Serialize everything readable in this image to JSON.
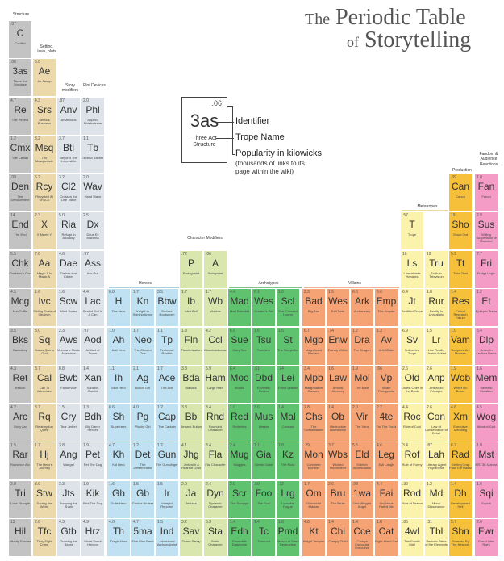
{
  "title": {
    "the": "The",
    "line1": "Periodic Table",
    "of": "of",
    "line2": "Storytelling"
  },
  "legend": {
    "popularity": ".06",
    "identifier": "3as",
    "name": "Three Act Structure",
    "label_identifier": "Identifier",
    "label_name": "Trope Name",
    "label_popularity": "Popularity in kilowicks",
    "label_popularity_note": "(thousands of links to its page within the wiki)"
  },
  "group_labels": {
    "structure": "Structure",
    "setting": "Setting, laws, plots",
    "story_modifiers": "Story modifiers",
    "plot_devices": "Plot Devices",
    "character_modifiers": "Character Modifiers",
    "heroes": "Heroes",
    "archetypes": "Archetypes",
    "villains": "Villains",
    "metatropes": "Metatropes",
    "production": "Production",
    "fandom": "Fandom & Audience Reactions"
  },
  "colors": {
    "structure": "#c3c3c3",
    "setting": "#ebd9ac",
    "modifiers": "#dde3e9",
    "charmod": "#d9e7ae",
    "heroes": "#bfe1f1",
    "archetypes": "#5fc26e",
    "villains": "#f5a374",
    "metatropes": "#fbf2ab",
    "production": "#f6c03b",
    "fandom": "#f49cc5"
  },
  "cells": [
    {
      "s": "C",
      "n": "Conflict",
      "p": ".07",
      "c": "structure"
    },
    {
      "s": "3as",
      "n": "Three Act Structure",
      "p": ".06",
      "c": "structure"
    },
    {
      "s": "Re",
      "n": "The Reveal",
      "p": "4.7",
      "c": "structure"
    },
    {
      "s": "Cmx",
      "n": "The Climax",
      "p": "1.2",
      "c": "structure"
    },
    {
      "s": "Den",
      "n": "The Dénouement",
      "p": ".09",
      "c": "structure"
    },
    {
      "s": "End",
      "n": "The End",
      "p": "14",
      "c": "structure"
    },
    {
      "s": "Chk",
      "n": "Chekhov's Gun",
      "p": "5.5",
      "c": "structure"
    },
    {
      "s": "Mcg",
      "n": "MacGuffin",
      "p": "4.5",
      "c": "structure"
    },
    {
      "s": "Bks",
      "n": "Backstory",
      "p": "3.5",
      "c": "structure"
    },
    {
      "s": "Ret",
      "n": "Retcon",
      "p": "4.3",
      "c": "structure"
    },
    {
      "s": "Arc",
      "n": "Story Arc",
      "p": "4.2",
      "c": "structure"
    },
    {
      "s": "Rar",
      "n": "Romance Arc",
      "p": "1.5",
      "c": "structure"
    },
    {
      "s": "Tri",
      "n": "Love Triangle",
      "p": "2.8",
      "c": "structure"
    },
    {
      "s": "Hil",
      "n": "Hilarity Ensues",
      "p": "13",
      "c": "structure"
    },
    {
      "s": "Ae",
      "n": "An Aesop",
      "p": "5.0",
      "c": "setting"
    },
    {
      "s": "Srs",
      "n": "Serious Business",
      "p": "4.3",
      "c": "setting"
    },
    {
      "s": "Msq",
      "n": "The Masquerade",
      "p": "3.2",
      "c": "setting"
    },
    {
      "s": "Rcy",
      "n": "Recycled IN SPACE",
      "p": "5.2",
      "c": "setting"
    },
    {
      "s": "X",
      "n": "X Meets Y",
      "p": "2.3",
      "c": "setting"
    },
    {
      "s": "Aa",
      "n": "Magic A Is Magic A",
      "p": "7.0",
      "c": "setting"
    },
    {
      "s": "Ivc",
      "n": "Sliding Scale of Idealism",
      "p": "1.6",
      "c": "setting"
    },
    {
      "s": "Sq",
      "n": "Status Quo Is God",
      "p": "3.0",
      "c": "setting"
    },
    {
      "s": "Cal",
      "n": "Call To Adventure",
      "p": "3.7",
      "c": "setting"
    },
    {
      "s": "Rq",
      "n": "Redemption Quest",
      "p": "3.7",
      "c": "setting"
    },
    {
      "s": "Hj",
      "n": "The Hero's Journey",
      "p": "1.7",
      "c": "setting"
    },
    {
      "s": "Stw",
      "n": "Saving the World",
      "p": "3.0",
      "c": "setting"
    },
    {
      "s": "Tfc",
      "n": "They Fight Crime",
      "p": "2.6",
      "c": "setting"
    },
    {
      "s": "Anv",
      "n": "Anvilicious",
      "p": ".87",
      "c": "modifiers"
    },
    {
      "s": "Bti",
      "n": "Beyond The Impossible",
      "p": "3.7",
      "c": "modifiers"
    },
    {
      "s": "Cl2",
      "n": "Crosses the Line Twice",
      "p": "3.2",
      "c": "modifiers"
    },
    {
      "s": "Ria",
      "n": "Refuge in Audacity",
      "p": "5.0",
      "c": "modifiers"
    },
    {
      "s": "Dae",
      "n": "Darker and Edgier",
      "p": "4.6",
      "c": "modifiers"
    },
    {
      "s": "Scw",
      "n": "Mind Screw",
      "p": "1.6",
      "c": "modifiers"
    },
    {
      "s": "Aws",
      "n": "Mundane Made Awesome",
      "p": "2.3",
      "c": "modifiers"
    },
    {
      "s": "Bwb",
      "n": "Fanservice",
      "p": "8.8",
      "c": "modifiers"
    },
    {
      "s": "Cry",
      "n": "Tear Jerker",
      "p": "1.5",
      "c": "modifiers"
    },
    {
      "s": "Ang",
      "n": "Wangst",
      "p": "3.8",
      "c": "modifiers"
    },
    {
      "s": "Jts",
      "n": "Jumping the Shark",
      "p": "3.3",
      "c": "modifiers"
    },
    {
      "s": "Gtb",
      "n": "Growing the Beard",
      "p": "4.3",
      "c": "modifiers"
    },
    {
      "s": "Phl",
      "n": "Applied Phlebotinum",
      "p": "2.0",
      "c": "modifiers"
    },
    {
      "s": "Tb",
      "n": "Techno Babble",
      "p": "1.1",
      "c": "modifiers"
    },
    {
      "s": "Wav",
      "n": "Hand Wave",
      "p": "2.0",
      "c": "modifiers"
    },
    {
      "s": "Dx",
      "n": "Deus Ex Machina",
      "p": "2.5",
      "c": "modifiers"
    },
    {
      "s": "Ass",
      "n": "Ass Pull",
      "p": ".97",
      "c": "modifiers"
    },
    {
      "s": "Lac",
      "n": "Sealed Evil In A Can",
      "p": "4.4",
      "c": "modifiers"
    },
    {
      "s": "Aod",
      "n": "Artifact of Doom",
      "p": ".97",
      "c": "modifiers"
    },
    {
      "s": "Xan",
      "n": "Xanatos Gambit",
      "p": "1.4",
      "c": "modifiers"
    },
    {
      "s": "Bdh",
      "n": "Big Damn Heroes",
      "p": "1.3",
      "c": "modifiers"
    },
    {
      "s": "Pet",
      "n": "Pet The Dog",
      "p": "1.9",
      "c": "modifiers"
    },
    {
      "s": "Kik",
      "n": "Kick The Dog",
      "p": "1.9",
      "c": "modifiers"
    },
    {
      "s": "Hrz",
      "n": "Moral Event Horizon",
      "p": "4.9",
      "c": "modifiers"
    },
    {
      "s": "P",
      "n": "Protagonist",
      "p": ".72",
      "c": "charmod"
    },
    {
      "s": "A",
      "n": "Antagonist",
      "p": ".06",
      "c": "charmod"
    },
    {
      "s": "Ib",
      "n": "Idiot Ball",
      "p": "1.7",
      "c": "charmod"
    },
    {
      "s": "Wb",
      "n": "Woobie",
      "p": "1.7",
      "c": "charmod"
    },
    {
      "s": "Fln",
      "n": "Flanderization",
      "p": "1.3",
      "c": "charmod"
    },
    {
      "s": "Ccl",
      "n": "Cloudcuckoolander",
      "p": "4.2",
      "c": "charmod"
    },
    {
      "s": "Bda",
      "n": "Badass",
      "p": "3.3",
      "c": "charmod"
    },
    {
      "s": "Ham",
      "n": "Large Ham",
      "p": "5.9",
      "c": "charmod"
    },
    {
      "s": "Bb",
      "n": "Berserk Button",
      "p": "3.3",
      "c": "charmod"
    },
    {
      "s": "Rnd",
      "n": "Rounded Character",
      "p": "3.4",
      "c": "charmod"
    },
    {
      "s": "Jhg",
      "n": "Jerk with a Heart of Gold",
      "p": "4.1",
      "c": "charmod"
    },
    {
      "s": "Fla",
      "n": "Flat Character",
      "p": "3.4",
      "c": "charmod"
    },
    {
      "s": "Ja",
      "n": "Jerkass",
      "p": "2.0",
      "c": "charmod"
    },
    {
      "s": "Dyn",
      "n": "Dynamic Character",
      "p": "2.4",
      "c": "charmod"
    },
    {
      "s": "Sav",
      "n": "Genre Savvy",
      "p": "3.2",
      "c": "charmod"
    },
    {
      "s": "Sta",
      "n": "Static Character",
      "p": "5.3",
      "c": "charmod"
    },
    {
      "s": "H",
      "n": "The Hero",
      "p": "8.8",
      "c": "heroes"
    },
    {
      "s": "Kn",
      "n": "Knight in Shining Armor",
      "p": "1.7",
      "c": "heroes"
    },
    {
      "s": "Bbw",
      "n": "Badass Bookworm",
      "p": "3.5",
      "c": "heroes"
    },
    {
      "s": "Ah",
      "n": "Anti Hero",
      "p": "1.0",
      "c": "heroes"
    },
    {
      "s": "Neo",
      "n": "The Chosen One",
      "p": "1.7",
      "c": "heroes"
    },
    {
      "s": "Tp",
      "n": "Technical Pacifist",
      "p": "1.1",
      "c": "heroes"
    },
    {
      "s": "Ih",
      "n": "Idiot Hero",
      "p": "1.1",
      "c": "heroes"
    },
    {
      "s": "Ag",
      "n": "Action Girl",
      "p": "2.1",
      "c": "heroes"
    },
    {
      "s": "Ace",
      "n": "The Ace",
      "p": "1.7",
      "c": "heroes"
    },
    {
      "s": "Sh",
      "n": "Superhero",
      "p": "8.6",
      "c": "heroes"
    },
    {
      "s": "Pg",
      "n": "Plucky Girl",
      "p": "4.0",
      "c": "heroes"
    },
    {
      "s": "Cap",
      "n": "The Captain",
      "p": "1.2",
      "c": "heroes"
    },
    {
      "s": "Kh",
      "n": "Kid Hero",
      "p": "4.7",
      "c": "heroes"
    },
    {
      "s": "Det",
      "n": "The Determinator",
      "p": "1.2",
      "c": "heroes"
    },
    {
      "s": "Gun",
      "n": "The Gunslinger",
      "p": "1.2",
      "c": "heroes"
    },
    {
      "s": "Gh",
      "n": "Guile Hero",
      "p": "1.6",
      "c": "heroes"
    },
    {
      "s": "Gb",
      "n": "Genius Bruiser",
      "p": "1.5",
      "c": "heroes"
    },
    {
      "s": "Ir",
      "n": "Intrepid Reporter",
      "p": "1.5",
      "c": "heroes"
    },
    {
      "s": "Th",
      "n": "Tragic Hero",
      "p": "4.0",
      "c": "heroes"
    },
    {
      "s": "5ma",
      "n": "Five Man Band",
      "p": "4.7",
      "c": "heroes"
    },
    {
      "s": "Ind",
      "n": "Adventurer Archaeologist",
      "p": "1.5",
      "c": "heroes"
    },
    {
      "s": "Mad",
      "n": "Mad Scientist",
      "p": "4.4",
      "c": "archetypes"
    },
    {
      "s": "Wes",
      "n": "Creator's Pet",
      "p": "6.1",
      "c": "archetypes"
    },
    {
      "s": "Scl",
      "n": "Star-Crossed Lovers",
      "p": "1.0",
      "c": "archetypes"
    },
    {
      "s": "Sue",
      "n": "Mary Sue",
      "p": "6.6",
      "c": "archetypes"
    },
    {
      "s": "Tsu",
      "n": "Tsundere",
      "p": "1.6",
      "c": "archetypes"
    },
    {
      "s": "St",
      "n": "The Storyteller",
      "p": "1.5",
      "c": "archetypes"
    },
    {
      "s": "Moo",
      "n": "Mooks",
      "p": "6.4",
      "c": "archetypes"
    },
    {
      "s": "Dbd",
      "n": "Eccentric Mentor",
      "p": ".61",
      "c": "archetypes"
    },
    {
      "s": "Lei",
      "n": "Rebel Leader",
      "p": ".24",
      "c": "archetypes"
    },
    {
      "s": "Red",
      "n": "Redshirts",
      "p": "1.0",
      "c": "archetypes"
    },
    {
      "s": "Mus",
      "n": "Mentor",
      "p": "3.0",
      "c": "archetypes"
    },
    {
      "s": "Mal",
      "n": "Contrast",
      "p": "1.4",
      "c": "archetypes"
    },
    {
      "s": "Mug",
      "n": "Muggles",
      "p": "2.4",
      "c": "archetypes"
    },
    {
      "s": "Gia",
      "n": "Gentle Giant",
      "p": "1.1",
      "c": "archetypes"
    },
    {
      "s": "Kz",
      "n": "The Klutz",
      "p": "2.8",
      "c": "archetypes"
    },
    {
      "s": "Scr",
      "n": "The Scrappy",
      "p": "2.0",
      "c": "archetypes"
    },
    {
      "s": "Foo",
      "n": "The Fool",
      "p": ".50",
      "c": "archetypes"
    },
    {
      "s": "Lrg",
      "n": "Loveable Rogue",
      "p": ".72",
      "c": "archetypes"
    },
    {
      "s": "Edh",
      "n": "Ensemble Darkhorse",
      "p": "1.4",
      "c": "archetypes"
    },
    {
      "s": "Tc",
      "n": "Turncoat",
      "p": "1.4",
      "c": "archetypes"
    },
    {
      "s": "Pmd",
      "n": "Person of Mass Destruction",
      "p": "1.8",
      "c": "archetypes"
    },
    {
      "s": "Bad",
      "n": "Big Bad",
      "p": "2.3",
      "c": "villains"
    },
    {
      "s": "Wes",
      "n": "Evil Twin",
      "p": "1.5",
      "c": "villains"
    },
    {
      "s": "Ark",
      "n": "Archenemy",
      "p": "6.6",
      "c": "villains"
    },
    {
      "s": "Emp",
      "n": "The Empire",
      "p": "6.6",
      "c": "villains"
    },
    {
      "s": "Mgb",
      "n": "Magnificent Bastard",
      "p": "6.7",
      "c": "villains"
    },
    {
      "s": "Enw",
      "n": "Enemy Within",
      "p": ".74",
      "c": "villains"
    },
    {
      "s": "Dra",
      "n": "The Dragon",
      "p": "1.2",
      "c": "villains"
    },
    {
      "s": "Av",
      "n": "Anti-Villain",
      "p": "1.3",
      "c": "villains"
    },
    {
      "s": "Mpb",
      "n": "Manipulative Bastard",
      "p": "3.4",
      "c": "villains"
    },
    {
      "s": "Law",
      "n": "Amoral Attorney",
      "p": "1.6",
      "c": "villains"
    },
    {
      "s": "Mol",
      "n": "The Mole",
      "p": "1.9",
      "c": "villains"
    },
    {
      "s": "Vp",
      "n": "Villain Protagonist",
      "p": ".66",
      "c": "villains"
    },
    {
      "s": "Chs",
      "n": "The Chessmaster",
      "p": "2.8",
      "c": "villains"
    },
    {
      "s": "Ob",
      "n": "Obstructive Bureaucrat",
      "p": "1.4",
      "c": "villains"
    },
    {
      "s": "Vir",
      "n": "The Virus",
      "p": "2.0",
      "c": "villains"
    },
    {
      "s": "4te",
      "n": "For The Evulz",
      "p": "2.2",
      "c": "villains"
    },
    {
      "s": "Mon",
      "n": "Complete Monster",
      "p": ".29",
      "c": "villains"
    },
    {
      "s": "Wbs",
      "n": "Wicked Stepmother",
      "p": "3.7",
      "c": "villains"
    },
    {
      "s": "Eld",
      "n": "Eldritch Abomination",
      "p": "5.5",
      "c": "villains"
    },
    {
      "s": "Leg",
      "n": "Evil Laugh",
      "p": "4.6",
      "c": "villains"
    },
    {
      "s": "Om",
      "n": "Omnicidal Maniac",
      "p": "1.7",
      "c": "villains"
    },
    {
      "s": "Bru",
      "n": "The Brute",
      "p": "2.6",
      "c": "villains"
    },
    {
      "s": "1wa",
      "n": "One Winged Angel",
      "p": ".98",
      "c": "villains"
    },
    {
      "s": "Fai",
      "n": "You Have Failed Me",
      "p": "4.4",
      "c": "villains"
    },
    {
      "s": "Kt",
      "n": "Knight Templar",
      "p": "4.8",
      "c": "villains"
    },
    {
      "s": "Chi",
      "n": "Creepy Child",
      "p": "1.4",
      "c": "villains"
    },
    {
      "s": "Cce",
      "n": "Corrupt Corporate Executive",
      "p": "1.4",
      "c": "villains"
    },
    {
      "s": "Cat",
      "n": "Right-Hand Cat",
      "p": "1.8",
      "c": "villains"
    },
    {
      "s": "T",
      "n": "Trope",
      "p": ".57",
      "c": "metatropes"
    },
    {
      "s": "Ls",
      "n": "Lampshade Hanging",
      "p": "16",
      "c": "metatropes"
    },
    {
      "s": "Tru",
      "n": "Truth in Television",
      "p": "19",
      "c": "metatropes"
    },
    {
      "s": "Jt",
      "n": "Justified Trope",
      "p": "6.4",
      "c": "metatropes"
    },
    {
      "s": "Rur",
      "n": "Reality Is Unrealistic",
      "p": "1.8",
      "c": "metatropes"
    },
    {
      "s": "Sv",
      "n": "Subverted Trope",
      "p": "6.9",
      "c": "metatropes"
    },
    {
      "s": "Lr",
      "n": "Like Reality Unless Noted",
      "p": "1.5",
      "c": "metatropes"
    },
    {
      "s": "Old",
      "n": "Oldest Ones in the Book",
      "p": "2.6",
      "c": "metatropes"
    },
    {
      "s": "Anp",
      "n": "Anthropic Principle",
      "p": "2.6",
      "c": "metatropes"
    },
    {
      "s": "Roc",
      "n": "Rule of Cool",
      "p": "4.4",
      "c": "metatropes"
    },
    {
      "s": "Con",
      "n": "Law of Conservation of Detail",
      "p": "2.6",
      "c": "metatropes"
    },
    {
      "s": "Rof",
      "n": "Rule of Funny",
      "p": "3.4",
      "c": "metatropes"
    },
    {
      "s": "Lah",
      "n": "Literary Agent Hypothesis",
      "p": ".87",
      "c": "metatropes"
    },
    {
      "s": "Rod",
      "n": "Rule of Drama",
      "p": ".39",
      "c": "metatropes"
    },
    {
      "s": "Md",
      "n": "Moral Dissonance",
      "p": "1.2",
      "c": "metatropes"
    },
    {
      "s": "4wl",
      "n": "The Fourth Wall",
      "p": ".85",
      "c": "metatropes"
    },
    {
      "s": "Tbl",
      "n": "Periodic Table of the Elements",
      "p": ".31",
      "c": "metatropes"
    },
    {
      "s": "Can",
      "n": "Canon",
      "p": ".39",
      "c": "production"
    },
    {
      "s": "Sho",
      "n": "Shout Out",
      "p": "19",
      "c": "production"
    },
    {
      "s": "Tt",
      "n": "Take That",
      "p": "5.9",
      "c": "production"
    },
    {
      "s": "Res",
      "n": "Critical Research Failure",
      "p": "1.4",
      "c": "production"
    },
    {
      "s": "Vam",
      "n": "Vampires Are Mooses",
      "p": "1.0",
      "c": "production"
    },
    {
      "s": "Wob",
      "n": "Writer On Board",
      "p": "1.9",
      "c": "production"
    },
    {
      "s": "Xm",
      "n": "Executive Meddling",
      "p": "4.6",
      "c": "production"
    },
    {
      "s": "Rad",
      "n": "Getting Crap Past The Radar",
      "p": "6.2",
      "c": "production"
    },
    {
      "s": "Dh",
      "n": "Development Hell",
      "p": "1.4",
      "c": "production"
    },
    {
      "s": "Sbn",
      "n": "Screwed By The Network",
      "p": "5.7",
      "c": "production"
    },
    {
      "s": "Fan",
      "n": "Fanon",
      "p": "1.8",
      "c": "fandom"
    },
    {
      "s": "Sus",
      "n": "Willing Suspension of Disbelief",
      "p": "2.8",
      "c": "fandom"
    },
    {
      "s": "Fri",
      "n": "Fridge Logic",
      "p": "7.7",
      "c": "fandom"
    },
    {
      "s": "Et",
      "n": "Epileptic Trees",
      "p": "1.2",
      "c": "fandom"
    },
    {
      "s": "Dlp",
      "n": "Draco In Leather Pants",
      "p": "5.4",
      "c": "fandom"
    },
    {
      "s": "Mem",
      "n": "Memetic Mutation",
      "p": "1.6",
      "c": "fandom"
    },
    {
      "s": "Wog",
      "n": "Word of God",
      "p": "4.5",
      "c": "fandom"
    },
    {
      "s": "Mst",
      "n": "MST3K Mantra",
      "p": "1.8",
      "c": "fandom"
    },
    {
      "s": "Sqi",
      "n": "Squick",
      "p": "1.6",
      "c": "fandom"
    },
    {
      "s": "Fwr",
      "n": "Fraud Was Right",
      "p": "2.6",
      "c": "fandom"
    }
  ]
}
